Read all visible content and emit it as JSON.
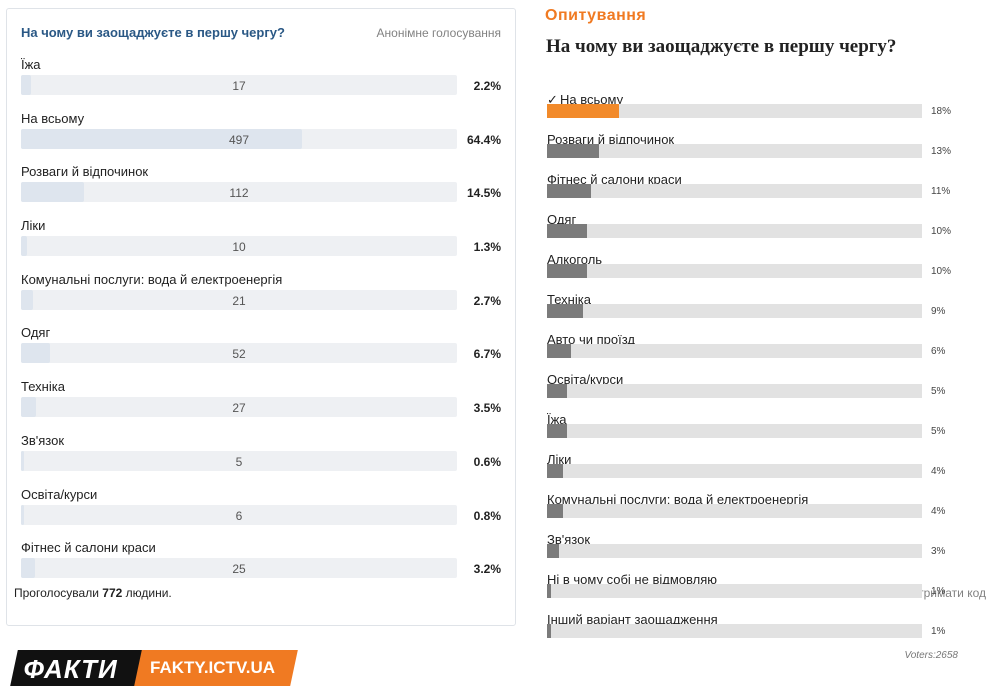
{
  "left_poll": {
    "question": "На чому ви заощаджуєте в першу чергу?",
    "anonymous_label": "Анонімне голосування",
    "options": [
      {
        "label": "Їжа",
        "count": "17",
        "percent": "2.2%",
        "fraction": 0.022
      },
      {
        "label": "На всьому",
        "count": "497",
        "percent": "64.4%",
        "fraction": 0.644
      },
      {
        "label": "Розваги й відпочинок",
        "count": "112",
        "percent": "14.5%",
        "fraction": 0.145
      },
      {
        "label": "Ліки",
        "count": "10",
        "percent": "1.3%",
        "fraction": 0.013
      },
      {
        "label": "Комунальні послуги: вода й електроенергія",
        "count": "21",
        "percent": "2.7%",
        "fraction": 0.027
      },
      {
        "label": "Одяг",
        "count": "52",
        "percent": "6.7%",
        "fraction": 0.067
      },
      {
        "label": "Техніка",
        "count": "27",
        "percent": "3.5%",
        "fraction": 0.035
      },
      {
        "label": "Зв'язок",
        "count": "5",
        "percent": "0.6%",
        "fraction": 0.006
      },
      {
        "label": "Освіта/курси",
        "count": "6",
        "percent": "0.8%",
        "fraction": 0.008
      },
      {
        "label": "Фітнес й салони краси",
        "count": "25",
        "percent": "3.2%",
        "fraction": 0.032
      }
    ],
    "voted_prefix": "Проголосували",
    "voted_count": "772",
    "voted_suffix": "людини.",
    "get_code_label": "Отримати код"
  },
  "right_poll": {
    "header": "Опитування",
    "question": "На чому ви заощаджуєте в першу чергу?",
    "check_mark": "✓",
    "options": [
      {
        "label": "На всьому",
        "percent": "18%",
        "fraction": 0.18,
        "selected": true
      },
      {
        "label": "Розваги й відпочинок",
        "percent": "13%",
        "fraction": 0.13
      },
      {
        "label": "Фітнес й салони краси",
        "percent": "11%",
        "fraction": 0.11
      },
      {
        "label": "Одяг",
        "percent": "10%",
        "fraction": 0.1
      },
      {
        "label": "Алкоголь",
        "percent": "10%",
        "fraction": 0.1
      },
      {
        "label": "Техніка",
        "percent": "9%",
        "fraction": 0.09
      },
      {
        "label": "Авто чи проїзд",
        "percent": "6%",
        "fraction": 0.06
      },
      {
        "label": "Освіта/курси",
        "percent": "5%",
        "fraction": 0.05
      },
      {
        "label": "Їжа",
        "percent": "5%",
        "fraction": 0.05
      },
      {
        "label": "Ліки",
        "percent": "4%",
        "fraction": 0.04
      },
      {
        "label": "Комунальні послуги: вода й електроенергія",
        "percent": "4%",
        "fraction": 0.04
      },
      {
        "label": "Зв'язок",
        "percent": "3%",
        "fraction": 0.03
      },
      {
        "label": "Ні в чому собі не відмовляю",
        "percent": "1%",
        "fraction": 0.01
      },
      {
        "label": "Інший варіант заощадження",
        "percent": "1%",
        "fraction": 0.01
      }
    ],
    "voters_label": "Voters:2658"
  },
  "branding": {
    "logo_text": "ФАКТИ",
    "url_text": "FAKTY.ICTV.UA"
  },
  "colors": {
    "vk_title": "#2a5885",
    "accent_orange": "#f07a22",
    "bar_grey": "#7b7b7b"
  }
}
